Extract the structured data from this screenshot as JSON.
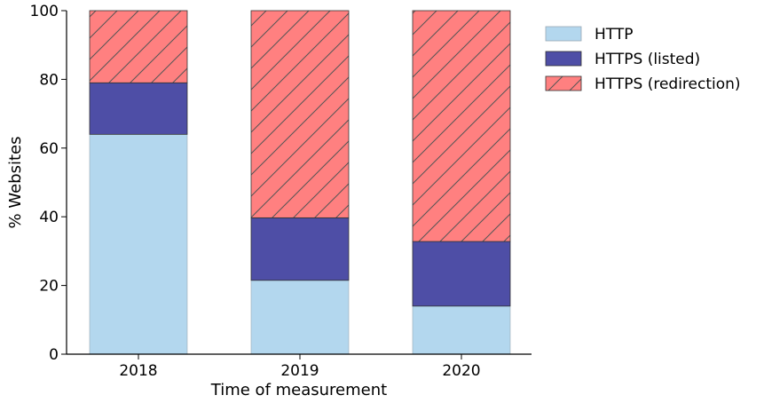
{
  "chart_data": {
    "type": "bar",
    "stacked": true,
    "categories": [
      "2018",
      "2019",
      "2020"
    ],
    "series": [
      {
        "name": "HTTP",
        "values": [
          64,
          21.5,
          14
        ],
        "color": "#b3d7ee",
        "hatch": false
      },
      {
        "name": "HTTPS (listed)",
        "values": [
          15,
          18.2,
          18.8
        ],
        "color": "#4e4ea6",
        "hatch": false
      },
      {
        "name": "HTTPS (redirection)",
        "values": [
          21,
          60.3,
          67.2
        ],
        "color": "#ff8080",
        "hatch": true
      }
    ],
    "xlabel": "Time of measurement",
    "ylabel": "% Websites",
    "ylim": [
      0,
      100
    ],
    "yticks": [
      0,
      20,
      40,
      60,
      80,
      100
    ],
    "legend_position": "top-right outside",
    "grid": false
  }
}
